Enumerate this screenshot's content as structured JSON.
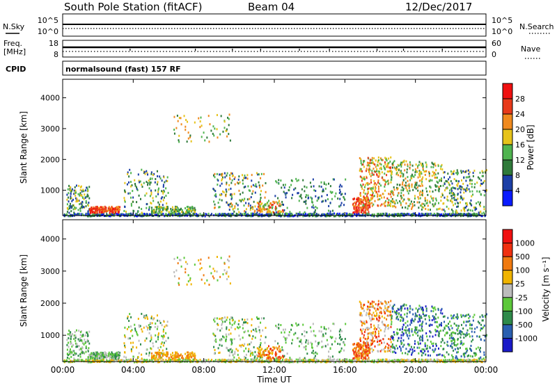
{
  "header": {
    "station": "South Pole Station (fitACF)",
    "beam": "Beam 04",
    "date": "12/Dec/2017"
  },
  "sky_panel": {
    "left_label": "N.Sky",
    "left_ticks": [
      "10^5",
      "10^0"
    ],
    "right_ticks": [
      "10^5",
      "10^0"
    ],
    "right_label": "N.Search"
  },
  "freq_panel": {
    "left_label_1": "Freq.",
    "left_label_2": "[MHz]",
    "left_ticks": [
      "18",
      "8"
    ],
    "right_ticks": [
      "60",
      "0"
    ],
    "right_label": "Nave"
  },
  "cpid": {
    "label": "CPID",
    "mode": "normalsound (fast) 157 RF"
  },
  "chart_data": [
    {
      "type": "heatmap",
      "name": "power",
      "ylabel": "Slant Range [km]",
      "xlabel": "Time UT",
      "x_ticks": [
        "00:00",
        "04:00",
        "08:00",
        "12:00",
        "16:00",
        "20:00",
        "00:00"
      ],
      "x_range_hours": [
        0,
        24
      ],
      "y_ticks": [
        1000,
        2000,
        3000,
        4000
      ],
      "y_range_km": [
        180,
        4600
      ],
      "colorbar": {
        "label": "Power [dB]",
        "ticks": [
          4,
          8,
          12,
          16,
          20,
          24,
          28
        ],
        "colors": [
          "#0a1bff",
          "#1c3fa6",
          "#2f7a3a",
          "#50b450",
          "#e6c31a",
          "#f08a1e",
          "#e83a1a",
          "#f01010"
        ]
      }
    },
    {
      "type": "heatmap",
      "name": "velocity",
      "ylabel": "Slant Range [km]",
      "xlabel": "Time UT",
      "x_ticks": [
        "00:00",
        "04:00",
        "08:00",
        "12:00",
        "16:00",
        "20:00",
        "00:00"
      ],
      "x_range_hours": [
        0,
        24
      ],
      "y_ticks": [
        1000,
        2000,
        3000,
        4000
      ],
      "y_range_km": [
        180,
        4600
      ],
      "colorbar": {
        "label": "Velocity [m s⁻¹]",
        "ticks": [
          "1000",
          "500",
          "100",
          "25",
          "-25",
          "-100",
          "-500",
          "-1000"
        ],
        "colors": [
          "#1a1ac8",
          "#2a5fb0",
          "#2e8a4a",
          "#5cc83a",
          "#bcbcbc",
          "#f0b400",
          "#f07a10",
          "#f03010",
          "#f01010"
        ]
      }
    }
  ]
}
